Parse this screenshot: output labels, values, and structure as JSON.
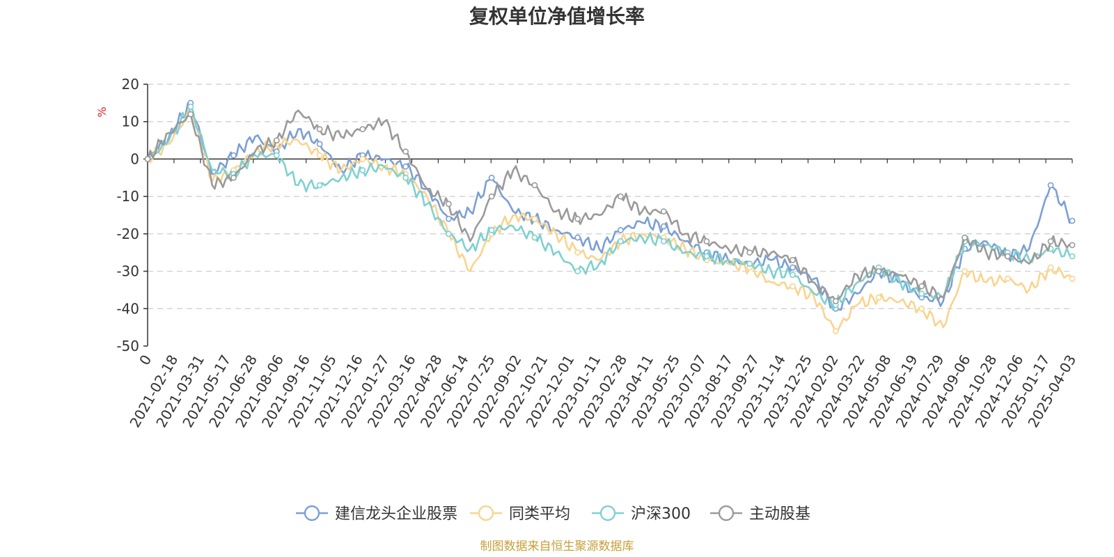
{
  "chart_data": {
    "type": "line",
    "title": "复权单位净值增长率",
    "ylabel": "%",
    "ylim": [
      -50,
      20
    ],
    "yticks": [
      20,
      10,
      0,
      -10,
      -20,
      -30,
      -40,
      -50
    ],
    "grid": true,
    "legend_position": "bottom",
    "x_tick_labels": [
      "0",
      "2021-02-18",
      "2021-03-31",
      "2021-05-17",
      "2021-06-28",
      "2021-08-06",
      "2021-09-16",
      "2021-11-05",
      "2021-12-16",
      "2022-01-27",
      "2022-03-16",
      "2022-04-28",
      "2022-06-14",
      "2022-07-25",
      "2022-09-02",
      "2022-10-21",
      "2022-12-01",
      "2023-01-11",
      "2023-02-28",
      "2023-04-11",
      "2023-05-25",
      "2023-07-07",
      "2023-08-17",
      "2023-09-27",
      "2023-11-14",
      "2023-12-25",
      "2024-02-02",
      "2024-03-22",
      "2024-05-08",
      "2024-06-19",
      "2024-07-29",
      "2024-09-06",
      "2024-10-28",
      "2024-12-06",
      "2025-01-17",
      "2025-04-03"
    ],
    "series": [
      {
        "name": "建信龙头企业股票",
        "color": "#7b9fd4",
        "values": [
          0,
          6,
          15,
          -4,
          1,
          6,
          2,
          8,
          4,
          -3,
          1,
          0,
          -2,
          -8,
          -16,
          -14,
          -5,
          -14,
          -16,
          -19,
          -21,
          -24,
          -19,
          -17,
          -18,
          -22,
          -25,
          -27,
          -28,
          -27,
          -29,
          -32,
          -40,
          -36,
          -30,
          -33,
          -37,
          -38,
          -24,
          -22,
          -26,
          -24,
          -7,
          -16.5
        ]
      },
      {
        "name": "同类平均",
        "color": "#f9d48e",
        "values": [
          0,
          4,
          13,
          -6,
          -3,
          2,
          4,
          5,
          1,
          -3,
          0,
          -2,
          -4,
          -10,
          -20,
          -30,
          -20,
          -15,
          -16,
          -20,
          -25,
          -27,
          -22,
          -20,
          -21,
          -24,
          -27,
          -28,
          -29,
          -33,
          -34,
          -37,
          -46,
          -39,
          -37,
          -38,
          -40,
          -45,
          -30,
          -33,
          -32,
          -35,
          -29,
          -32
        ]
      },
      {
        "name": "沪深300",
        "color": "#7fd0d1",
        "values": [
          0,
          5,
          14,
          -3,
          -4,
          1,
          1,
          -7,
          -7,
          -5,
          -3,
          -2,
          -5,
          -12,
          -20,
          -24,
          -19,
          -18,
          -21,
          -25,
          -30,
          -28,
          -22,
          -21,
          -22,
          -25,
          -26,
          -27,
          -28,
          -30,
          -31,
          -36,
          -39,
          -33,
          -29,
          -33,
          -36,
          -37,
          -22,
          -23,
          -25,
          -27,
          -24,
          -26
        ]
      },
      {
        "name": "主动股基",
        "color": "#9a9a9a",
        "values": [
          0,
          7,
          12,
          -7,
          -5,
          2,
          5,
          13,
          8,
          6,
          8,
          10,
          2,
          -8,
          -12,
          -22,
          -10,
          -3,
          -7,
          -14,
          -16,
          -15,
          -10,
          -14,
          -14,
          -20,
          -22,
          -24,
          -25,
          -25,
          -27,
          -33,
          -38,
          -31,
          -30,
          -31,
          -34,
          -37,
          -21,
          -25,
          -26,
          -28,
          -22,
          -23
        ]
      }
    ]
  },
  "legend": [
    {
      "label": "建信龙头企业股票"
    },
    {
      "label": "同类平均"
    },
    {
      "label": "沪深300"
    },
    {
      "label": "主动股基"
    }
  ],
  "source_note": "制图数据来自恒生聚源数据库"
}
